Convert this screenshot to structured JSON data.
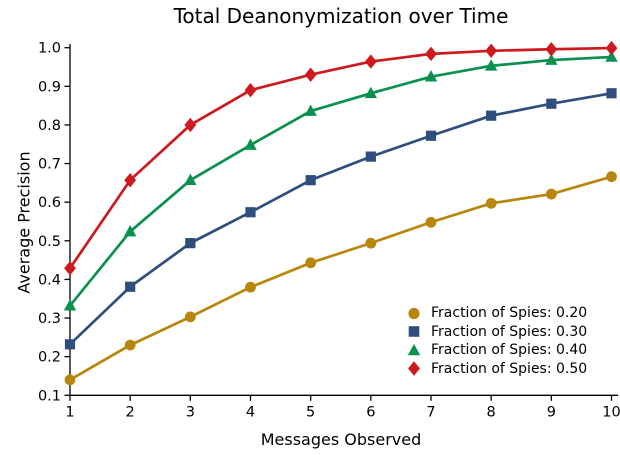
{
  "chart_data": {
    "type": "line",
    "title": "Total Deanonymization over Time",
    "xlabel": "Messages Observed",
    "ylabel": "Average Precision",
    "x": [
      1,
      2,
      3,
      4,
      5,
      6,
      7,
      8,
      9,
      10
    ],
    "xlim": [
      1,
      10
    ],
    "ylim": [
      0.1,
      1.0
    ],
    "xticks": [
      1,
      2,
      3,
      4,
      5,
      6,
      7,
      8,
      9,
      10
    ],
    "yticks": [
      0.1,
      0.2,
      0.3,
      0.4,
      0.5,
      0.6,
      0.7,
      0.8,
      0.9,
      1.0
    ],
    "grid": false,
    "legend_position": "lower right",
    "legend_frame": false,
    "background_color": "#ffffff",
    "text_color": "#000000",
    "series": [
      {
        "name": "Fraction of Spies: 0.20",
        "marker": "circle",
        "color": "#b8860b",
        "values": [
          0.14,
          0.23,
          0.303,
          0.38,
          0.443,
          0.494,
          0.548,
          0.597,
          0.621,
          0.666
        ]
      },
      {
        "name": "Fraction of Spies: 0.30",
        "marker": "square",
        "color": "#2e4e7e",
        "values": [
          0.232,
          0.381,
          0.494,
          0.574,
          0.657,
          0.718,
          0.772,
          0.824,
          0.855,
          0.882
        ]
      },
      {
        "name": "Fraction of Spies: 0.40",
        "marker": "triangle",
        "color": "#0a9150",
        "values": [
          0.332,
          0.524,
          0.657,
          0.748,
          0.836,
          0.882,
          0.925,
          0.953,
          0.968,
          0.976
        ]
      },
      {
        "name": "Fraction of Spies: 0.50",
        "marker": "diamond",
        "color": "#cd1a1f",
        "values": [
          0.429,
          0.657,
          0.8,
          0.89,
          0.93,
          0.964,
          0.984,
          0.992,
          0.996,
          0.999
        ]
      }
    ]
  }
}
